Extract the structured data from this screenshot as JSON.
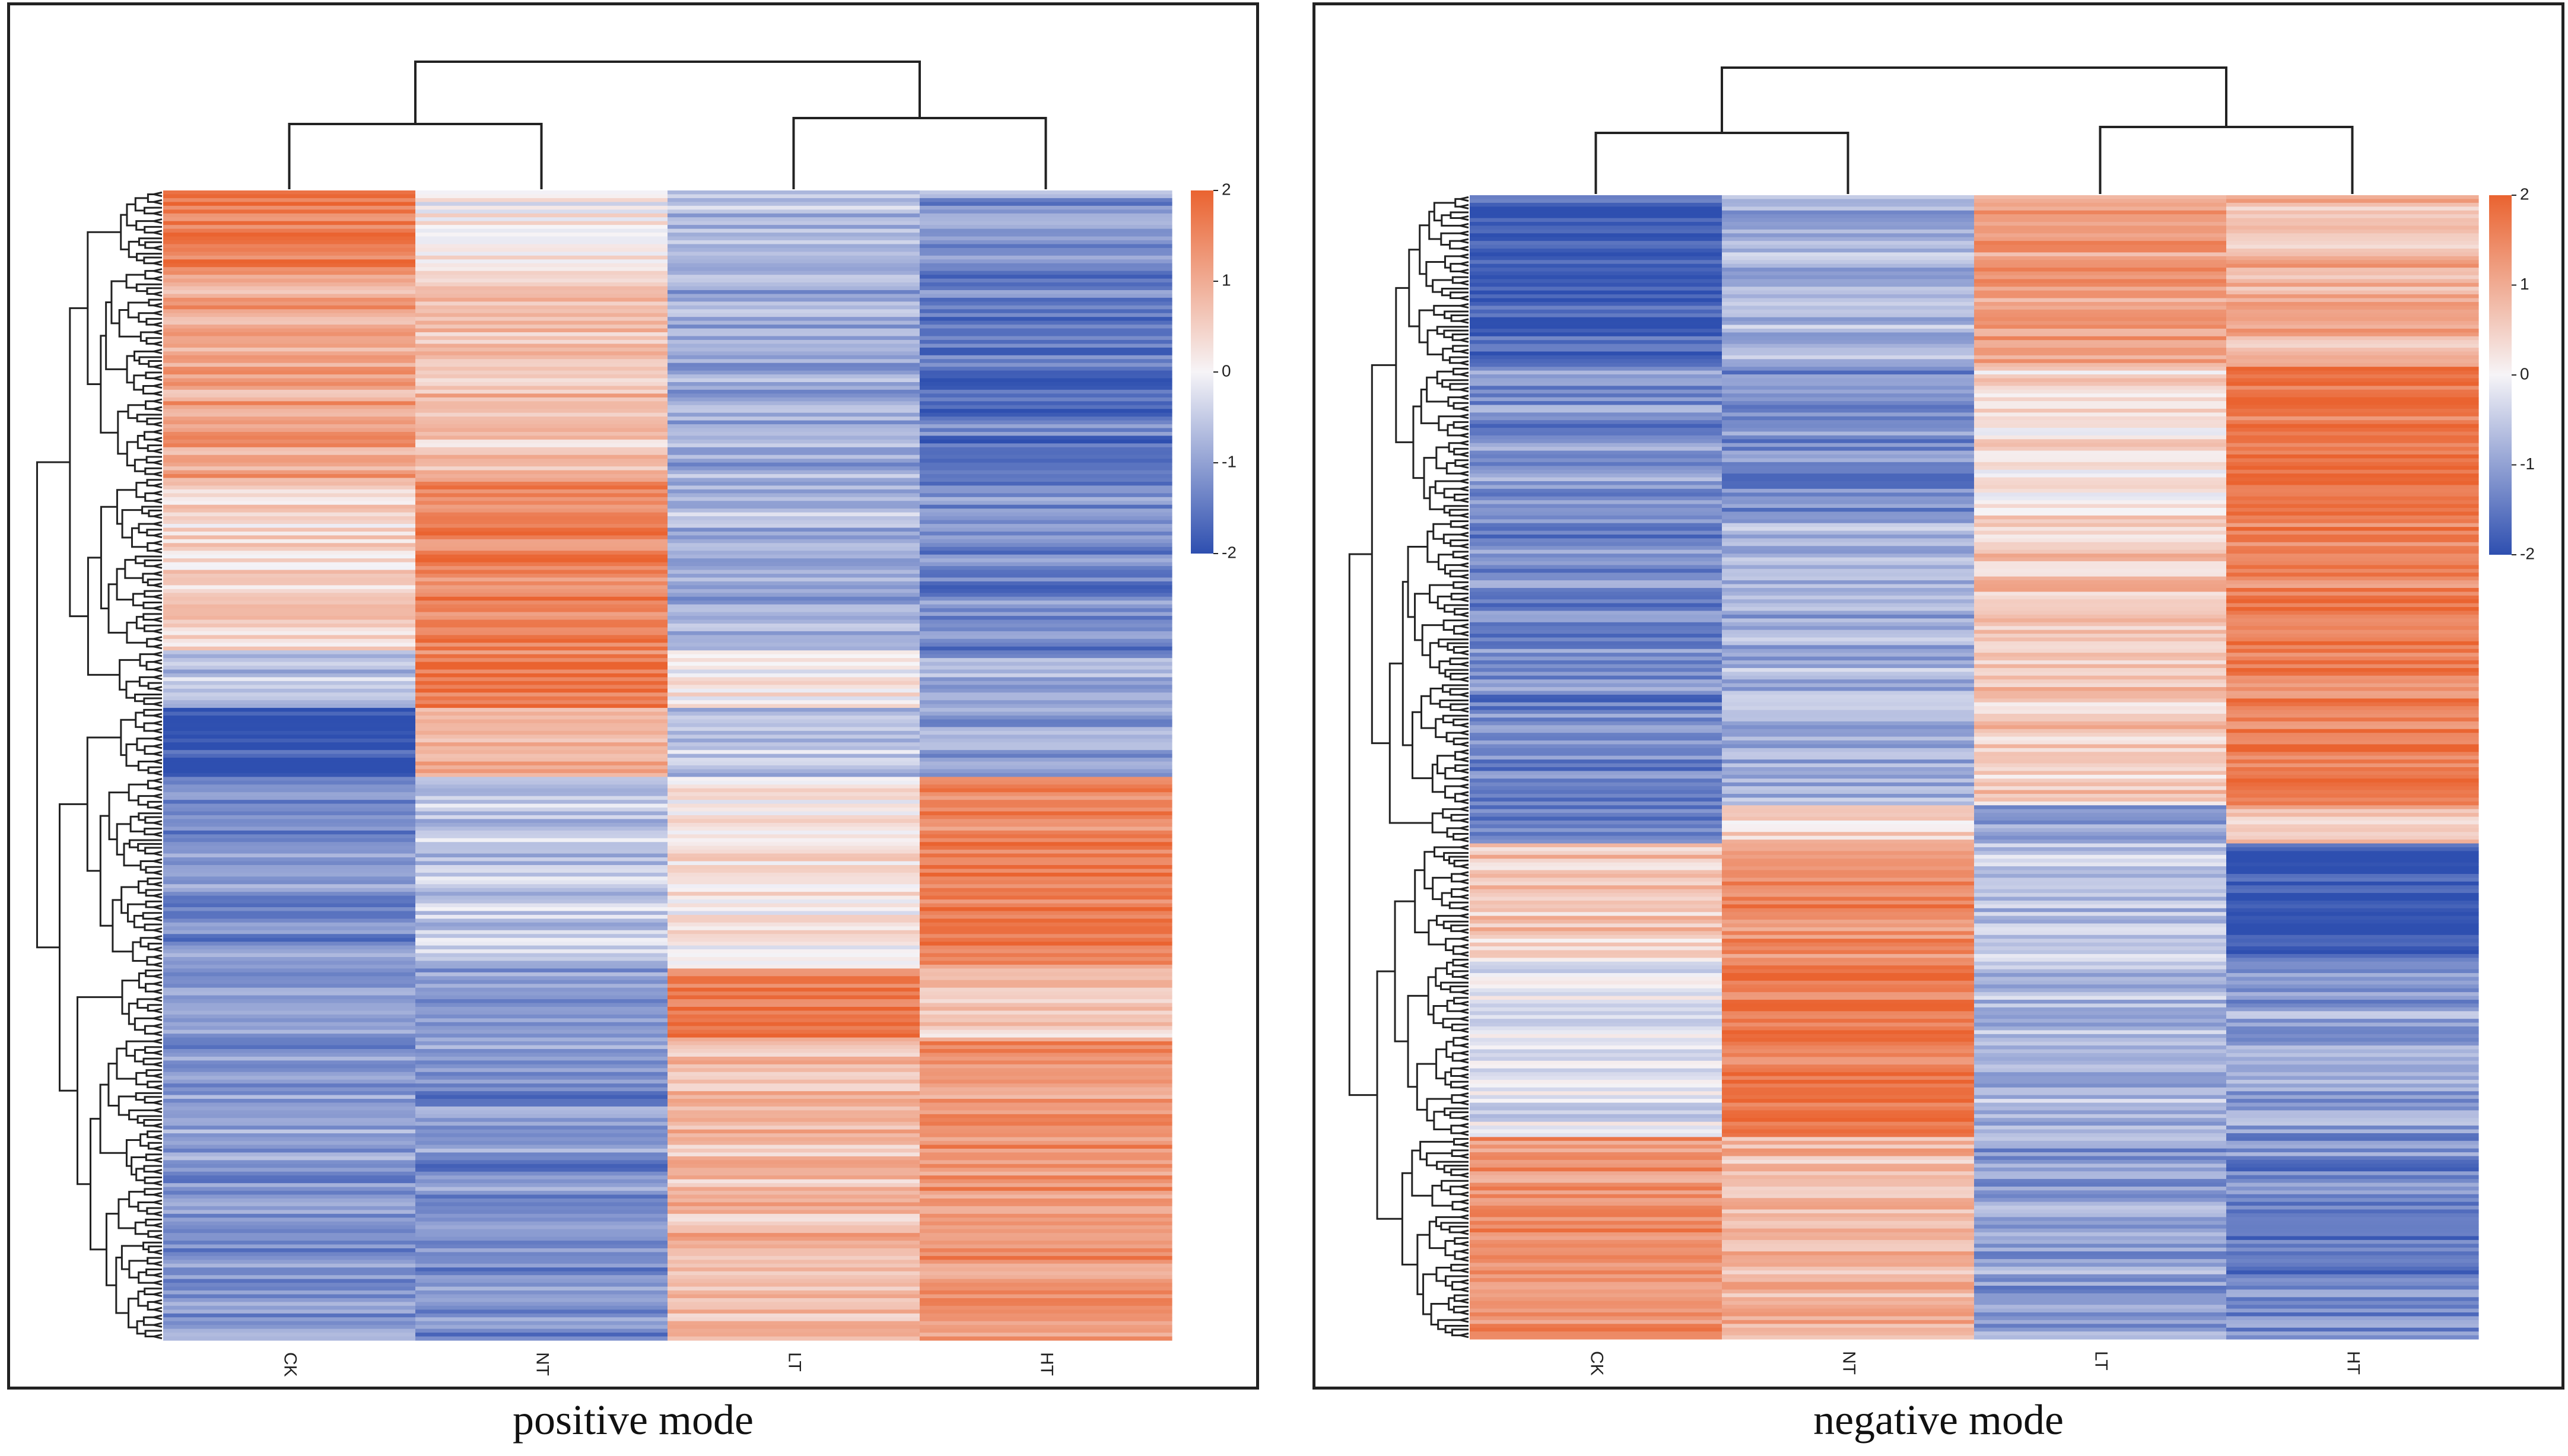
{
  "figure": {
    "colors": {
      "low": "#2e4fb0",
      "mid": "#f6f4f7",
      "high": "#ea6330",
      "line": "#222222"
    }
  },
  "chart_data": [
    {
      "type": "heatmap",
      "title": "positive mode",
      "columns": [
        "CK",
        "NT",
        "LT",
        "HT"
      ],
      "column_dendrogram": "((CK,NT),(LT,HT))",
      "colorbar": {
        "min": -2,
        "max": 2,
        "ticks": [
          "2",
          "1",
          "0",
          "-1",
          "-2"
        ]
      },
      "row_count": 300,
      "row_blocks": [
        {
          "rows": 20,
          "values": [
            1.7,
            0.1,
            -0.7,
            -1.1
          ]
        },
        {
          "rows": 55,
          "values": [
            1.1,
            0.7,
            -0.9,
            -1.5
          ]
        },
        {
          "rows": 45,
          "values": [
            0.4,
            1.6,
            -0.8,
            -1.3
          ]
        },
        {
          "rows": 15,
          "values": [
            -0.6,
            1.7,
            0.2,
            -0.9
          ]
        },
        {
          "rows": 18,
          "values": [
            -1.9,
            0.9,
            -0.6,
            -1.0
          ]
        },
        {
          "rows": 50,
          "values": [
            -1.2,
            -0.5,
            0.2,
            1.6
          ]
        },
        {
          "rows": 18,
          "values": [
            -1.0,
            -1.2,
            1.7,
            0.5
          ]
        },
        {
          "rows": 79,
          "values": [
            -1.1,
            -1.2,
            0.8,
            1.3
          ]
        }
      ]
    },
    {
      "type": "heatmap",
      "title": "negative mode",
      "columns": [
        "CK",
        "NT",
        "LT",
        "HT"
      ],
      "column_dendrogram": "((CK,NT),(LT,HT))",
      "colorbar": {
        "min": -2,
        "max": 2,
        "ticks": [
          "2",
          "1",
          "0",
          "-1",
          "-2"
        ]
      },
      "row_count": 300,
      "row_blocks": [
        {
          "rows": 45,
          "values": [
            -1.8,
            -0.8,
            1.2,
            0.9
          ]
        },
        {
          "rows": 40,
          "values": [
            -1.2,
            -1.2,
            0.3,
            1.8
          ]
        },
        {
          "rows": 75,
          "values": [
            -1.3,
            -0.8,
            0.6,
            1.6
          ]
        },
        {
          "rows": 10,
          "values": [
            -1.5,
            0.4,
            -1.2,
            0.6
          ]
        },
        {
          "rows": 30,
          "values": [
            0.6,
            1.4,
            -0.6,
            -1.9
          ]
        },
        {
          "rows": 47,
          "values": [
            -0.2,
            1.7,
            -0.8,
            -1.0
          ]
        },
        {
          "rows": 53,
          "values": [
            1.4,
            0.8,
            -1.0,
            -1.3
          ]
        }
      ]
    }
  ]
}
